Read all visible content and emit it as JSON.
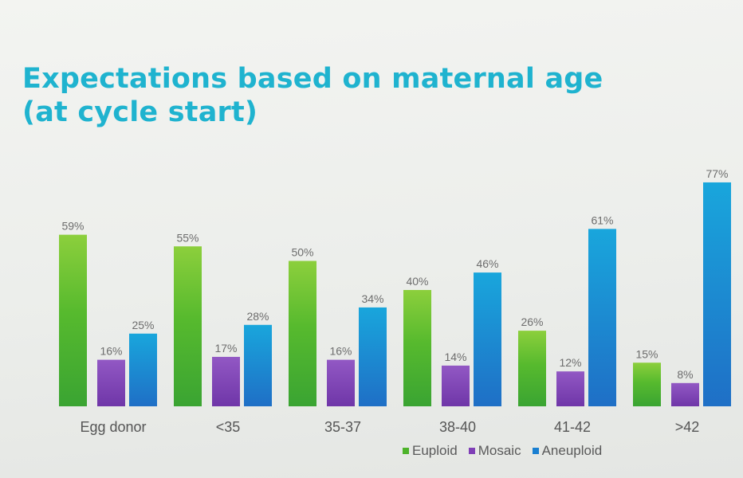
{
  "slide": {
    "title_line1": "Expectations based on maternal age",
    "title_line2": "(at cycle start)"
  },
  "chart_data": {
    "type": "bar",
    "categories": [
      "Egg donor",
      "<35",
      "35-37",
      "38-40",
      "41-42",
      ">42"
    ],
    "series": [
      {
        "name": "Euploid",
        "values": [
          59,
          55,
          50,
          40,
          26,
          15
        ],
        "color": "#4db32a"
      },
      {
        "name": "Mosaic",
        "values": [
          16,
          17,
          16,
          14,
          12,
          8
        ],
        "color": "#7f3fb6"
      },
      {
        "name": "Aneuploid",
        "values": [
          25,
          28,
          34,
          46,
          61,
          77
        ],
        "color": "#1a7fd1"
      }
    ],
    "value_suffix": "%",
    "ylim": [
      0,
      80
    ],
    "grid": false,
    "legend_position": "bottom-right"
  }
}
